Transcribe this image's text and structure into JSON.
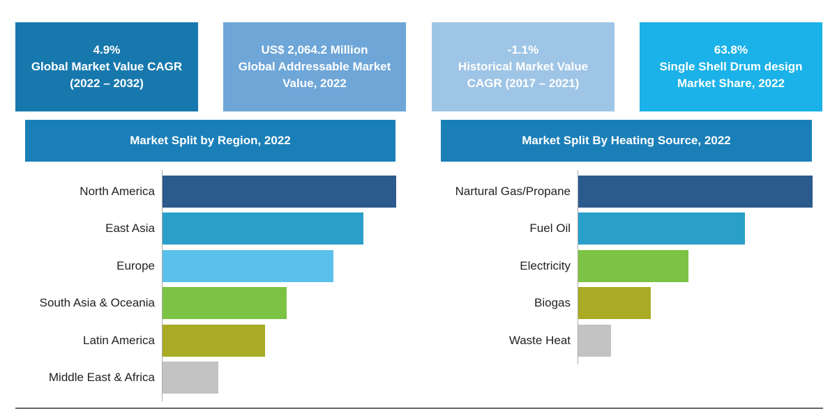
{
  "kpis": [
    {
      "value": "4.9%",
      "label1": "Global Market Value CAGR",
      "label2": "(2022 – 2032)",
      "color": "#1778ad"
    },
    {
      "value": "US$ 2,064.2 Million",
      "label1": "Global Addressable Market",
      "label2": "Value, 2022",
      "color": "#6ea6d8"
    },
    {
      "value": "-1.1%",
      "label1": "Historical Market Value",
      "label2": "CAGR (2017 – 2021)",
      "color": "#9fc5e6"
    },
    {
      "value": "63.8%",
      "label1": "Single Shell Drum design",
      "label2": "Market Share, 2022",
      "color": "#1ab2e8"
    }
  ],
  "chart_data": [
    {
      "type": "bar",
      "orientation": "horizontal",
      "title": "Market Split by Region, 2022",
      "categories": [
        "North America",
        "East Asia",
        "Europe",
        "South Asia & Oceania",
        "Latin America",
        "Middle East & Africa"
      ],
      "values": [
        100,
        86,
        73,
        53,
        44,
        24
      ],
      "colors": [
        "#2b5a8c",
        "#2a9fc9",
        "#5cc1ea",
        "#7cc244",
        "#a9ab24",
        "#c3c3c3"
      ]
    },
    {
      "type": "bar",
      "orientation": "horizontal",
      "title": "Market Split By Heating Source, 2022",
      "categories": [
        "Nartural Gas/Propane",
        "Fuel Oil",
        "Electricity",
        "Biogas",
        "Waste Heat"
      ],
      "values": [
        100,
        71,
        47,
        31,
        14
      ],
      "colors": [
        "#2b5a8c",
        "#2a9fc9",
        "#7cc244",
        "#a9ab24",
        "#c3c3c3"
      ]
    }
  ]
}
